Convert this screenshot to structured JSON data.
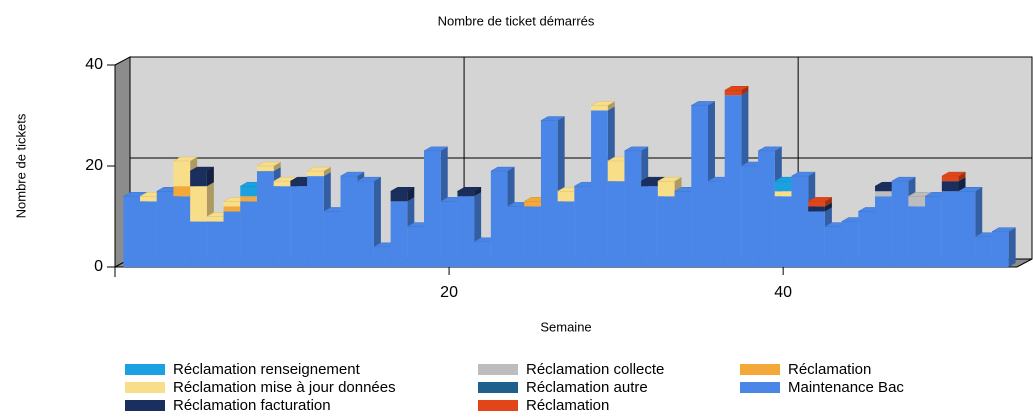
{
  "chart_data": {
    "type": "bar3d-stacked",
    "title": "Nombre de ticket démarrés",
    "x_label": "Semaine",
    "y_label": "Nombre de tickets",
    "x": [
      1,
      2,
      3,
      4,
      5,
      6,
      7,
      8,
      9,
      10,
      11,
      12,
      13,
      14,
      15,
      16,
      17,
      18,
      19,
      20,
      21,
      22,
      23,
      24,
      25,
      26,
      27,
      28,
      29,
      30,
      31,
      32,
      33,
      34,
      35,
      36,
      37,
      38,
      39,
      40,
      41,
      42,
      43,
      44,
      45,
      46,
      47,
      48,
      49,
      50,
      51,
      52,
      53
    ],
    "xlim": [
      0,
      54
    ],
    "xticks": [
      20,
      40
    ],
    "ylim": [
      0,
      40
    ],
    "yticks": [
      0,
      20,
      40
    ],
    "grid": true,
    "series": [
      {
        "name": "Maintenance Bac",
        "color": "#4a86e8",
        "values": [
          14,
          13,
          15,
          14,
          9,
          9,
          11,
          13,
          19,
          16,
          16,
          18,
          11,
          18,
          17,
          4,
          13,
          8,
          23,
          13,
          14,
          5,
          19,
          12,
          12,
          29,
          13,
          16,
          31,
          17,
          23,
          16,
          14,
          15,
          32,
          17,
          34,
          20,
          23,
          14,
          18,
          11,
          8,
          9,
          11,
          14,
          17,
          12,
          14,
          15,
          15,
          6,
          7
        ]
      },
      {
        "name": "Réclamation",
        "color": "#f5a83a",
        "values": [
          0,
          0,
          0,
          2,
          0,
          0,
          1,
          1,
          0,
          0,
          0,
          0,
          0,
          0,
          0,
          0,
          0,
          0,
          0,
          0,
          0,
          0,
          0,
          0,
          1,
          0,
          0,
          0,
          0,
          0,
          0,
          0,
          0,
          0,
          0,
          0,
          0,
          0,
          0,
          0,
          0,
          0,
          0,
          0,
          0,
          0,
          0,
          0,
          0,
          0,
          0,
          0,
          0
        ]
      },
      {
        "name": "Réclamation mise à jour données",
        "color": "#f9de8a",
        "values": [
          0,
          1,
          0,
          5,
          7,
          1,
          1,
          0,
          1,
          1,
          0,
          1,
          0,
          0,
          0,
          0,
          0,
          0,
          0,
          0,
          0,
          0,
          0,
          0,
          0,
          0,
          2,
          0,
          1,
          4,
          0,
          0,
          3,
          0,
          0,
          0,
          0,
          0,
          0,
          1,
          0,
          0,
          0,
          0,
          0,
          0,
          0,
          0,
          0,
          0,
          0,
          0,
          0
        ]
      },
      {
        "name": "Réclamation renseignement",
        "color": "#1ba1e2",
        "values": [
          0,
          0,
          0,
          0,
          0,
          0,
          0,
          2,
          0,
          0,
          0,
          0,
          0,
          0,
          0,
          0,
          0,
          0,
          0,
          0,
          0,
          0,
          0,
          0,
          0,
          0,
          0,
          0,
          0,
          0,
          0,
          0,
          0,
          0,
          0,
          0,
          0,
          0,
          0,
          2,
          0,
          0,
          0,
          0,
          0,
          0,
          0,
          0,
          0,
          0,
          0,
          0,
          0
        ]
      },
      {
        "name": "Réclamation collecte",
        "color": "#bdbdbd",
        "values": [
          0,
          0,
          0,
          0,
          0,
          0,
          0,
          0,
          0,
          0,
          0,
          0,
          0,
          0,
          0,
          0,
          0,
          0,
          0,
          0,
          0,
          0,
          0,
          0,
          0,
          0,
          0,
          0,
          0,
          0,
          0,
          0,
          0,
          0,
          0,
          0,
          0,
          0,
          0,
          0,
          0,
          0,
          0,
          0,
          0,
          1,
          0,
          2,
          0,
          0,
          0,
          0,
          0
        ]
      },
      {
        "name": "Réclamation autre",
        "color": "#1f5f8b",
        "values": [
          0,
          0,
          0,
          0,
          0,
          0,
          0,
          0,
          0,
          0,
          0,
          0,
          0,
          0,
          0,
          0,
          0,
          0,
          0,
          0,
          0,
          0,
          0,
          0,
          0,
          0,
          0,
          0,
          0,
          0,
          0,
          0,
          0,
          0,
          0,
          0,
          0,
          0,
          0,
          0,
          0,
          0,
          0,
          0,
          0,
          0,
          0,
          0,
          0,
          0,
          0,
          0,
          0
        ]
      },
      {
        "name": "Réclamation facturation",
        "color": "#1b2f5e",
        "values": [
          0,
          0,
          0,
          0,
          3,
          0,
          0,
          0,
          0,
          0,
          1,
          0,
          0,
          0,
          0,
          0,
          2,
          0,
          0,
          0,
          1,
          0,
          0,
          0,
          0,
          0,
          0,
          0,
          0,
          0,
          0,
          1,
          0,
          0,
          0,
          0,
          0,
          0,
          0,
          0,
          0,
          1,
          0,
          0,
          0,
          1,
          0,
          0,
          0,
          2,
          0,
          0,
          0
        ]
      },
      {
        "name": "Réclamation",
        "color": "#e0461a",
        "values": [
          0,
          0,
          0,
          0,
          0,
          0,
          0,
          0,
          0,
          0,
          0,
          0,
          0,
          0,
          0,
          0,
          0,
          0,
          0,
          0,
          0,
          0,
          0,
          0,
          0,
          0,
          0,
          0,
          0,
          0,
          0,
          0,
          0,
          0,
          0,
          0,
          1,
          0,
          0,
          0,
          0,
          1,
          0,
          0,
          0,
          0,
          0,
          0,
          0,
          1,
          0,
          0,
          0
        ]
      }
    ]
  }
}
